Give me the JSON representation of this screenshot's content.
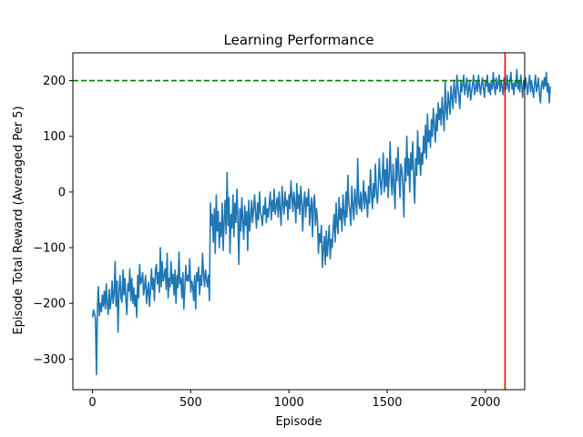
{
  "chart_data": {
    "type": "line",
    "title": "Learning Performance",
    "xlabel": "Episode",
    "ylabel": "Episode Total Reward (Averaged Per 5)",
    "xlim": [
      -100,
      2200
    ],
    "ylim": [
      -355,
      250
    ],
    "xticks": [
      0,
      500,
      1000,
      1500,
      2000
    ],
    "xtick_labels": [
      "0",
      "500",
      "1000",
      "1500",
      "2000"
    ],
    "yticks": [
      -300,
      -200,
      -100,
      0,
      100,
      200
    ],
    "ytick_labels": [
      "−300",
      "−200",
      "−100",
      "0",
      "100",
      "200"
    ],
    "grid": false,
    "series": [
      {
        "color": "#1f77b4",
        "x_start": 0,
        "x_step": 5,
        "values": [
          -225,
          -212,
          -218,
          -228,
          -328,
          -205,
          -170,
          -222,
          -200,
          -215,
          -185,
          -205,
          -178,
          -210,
          -165,
          -200,
          -220,
          -175,
          -210,
          -190,
          -160,
          -200,
          -182,
          -125,
          -205,
          -160,
          -252,
          -175,
          -150,
          -190,
          -198,
          -140,
          -185,
          -155,
          -192,
          -220,
          -165,
          -178,
          -138,
          -195,
          -155,
          -200,
          -172,
          -205,
          -185,
          -225,
          -150,
          -190,
          -130,
          -165,
          -160,
          -145,
          -185,
          -170,
          -150,
          -200,
          -180,
          -162,
          -205,
          -175,
          -138,
          -175,
          -155,
          -195,
          -140,
          -130,
          -165,
          -145,
          -180,
          -100,
          -170,
          -125,
          -160,
          -150,
          -138,
          -175,
          -110,
          -190,
          -155,
          -170,
          -125,
          -165,
          -148,
          -185,
          -140,
          -200,
          -150,
          -172,
          -108,
          -165,
          -155,
          -190,
          -145,
          -210,
          -172,
          -132,
          -160,
          -150,
          -160,
          -120,
          -180,
          -160,
          -168,
          -195,
          -150,
          -210,
          -145,
          -160,
          -135,
          -185,
          -150,
          -168,
          -110,
          -145,
          -170,
          -140,
          -155,
          -170,
          -150,
          -195,
          -20,
          -60,
          -40,
          -90,
          -30,
          -110,
          -5,
          -70,
          -35,
          -100,
          -55,
          -80,
          -20,
          -105,
          -50,
          -15,
          -75,
          35,
          -60,
          -10,
          -110,
          -40,
          -65,
          -5,
          -80,
          -20,
          -55,
          5,
          -45,
          -130,
          -30,
          -70,
          -10,
          -50,
          -85,
          -25,
          -60,
          -35,
          -105,
          -15,
          -70,
          -45,
          -15,
          -55,
          -30,
          -5,
          -40,
          -65,
          -20,
          -50,
          0,
          -35,
          -45,
          -60,
          -25,
          -40,
          -10,
          -55,
          -30,
          -45,
          -20,
          0,
          -50,
          -15,
          -35,
          5,
          -40,
          -25,
          -10,
          -45,
          0,
          -30,
          -60,
          10,
          -20,
          -40,
          0,
          -25,
          -15,
          -50,
          -5,
          -30,
          20,
          -10,
          -35,
          0,
          -20,
          -55,
          15,
          -30,
          -5,
          -40,
          10,
          -15,
          -70,
          -20,
          0,
          -45,
          -10,
          -25,
          5,
          -60,
          -30,
          -10,
          -80,
          -20,
          -5,
          -60,
          -30,
          -50,
          -110,
          -75,
          -90,
          -60,
          -135,
          -100,
          -80,
          -130,
          -70,
          -115,
          -90,
          -60,
          -120,
          -85,
          -100,
          -65,
          -40,
          -90,
          -20,
          -60,
          -75,
          -10,
          -50,
          -30,
          -70,
          -5,
          -40,
          -60,
          0,
          -45,
          30,
          -20,
          -35,
          -60,
          10,
          -25,
          -50,
          5,
          -15,
          -40,
          60,
          -20,
          -30,
          0,
          -35,
          -10,
          20,
          -30,
          0,
          -15,
          -45,
          10,
          -20,
          40,
          -5,
          -30,
          15,
          -10,
          50,
          0,
          -20,
          10,
          60,
          20,
          -5,
          30,
          70,
          0,
          40,
          10,
          60,
          -10,
          30,
          90,
          20,
          -5,
          50,
          10,
          -30,
          60,
          20,
          80,
          30,
          -10,
          50,
          40,
          10,
          -45,
          60,
          20,
          100,
          30,
          60,
          0,
          70,
          40,
          90,
          20,
          -20,
          60,
          30,
          110,
          50,
          80,
          30,
          70,
          50,
          100,
          70,
          120,
          60,
          140,
          90,
          110,
          80,
          130,
          100,
          150,
          120,
          90,
          140,
          110,
          160,
          130,
          150,
          120,
          170,
          140,
          110,
          200,
          150,
          130,
          180,
          160,
          140,
          190,
          170,
          150,
          200,
          180,
          160,
          210,
          190,
          170,
          150,
          200,
          180,
          195,
          210,
          175,
          190,
          205,
          170,
          185,
          200,
          165,
          180,
          195,
          210,
          175,
          185,
          200,
          180,
          210,
          190,
          175,
          195,
          205,
          185,
          170,
          200,
          190,
          210,
          180,
          195,
          175,
          200,
          185,
          215,
          190,
          175,
          205,
          185,
          195,
          210,
          180,
          200,
          190,
          175,
          205,
          195,
          185,
          210,
          190,
          180,
          200,
          215,
          185,
          195,
          175,
          200,
          190,
          220,
          185,
          200,
          180,
          210,
          190,
          170,
          200,
          185,
          205,
          190,
          175,
          195,
          210,
          180,
          200,
          185,
          170,
          195,
          210,
          180,
          190,
          205,
          175,
          160,
          190,
          200,
          185,
          205,
          190,
          215,
          180,
          195,
          160,
          190
        ]
      }
    ],
    "reference_lines": [
      {
        "orientation": "horizontal",
        "value": 200,
        "color": "#008000",
        "style": "dashed"
      },
      {
        "orientation": "vertical",
        "value": 2100,
        "color": "#ff0000",
        "style": "solid"
      }
    ]
  }
}
